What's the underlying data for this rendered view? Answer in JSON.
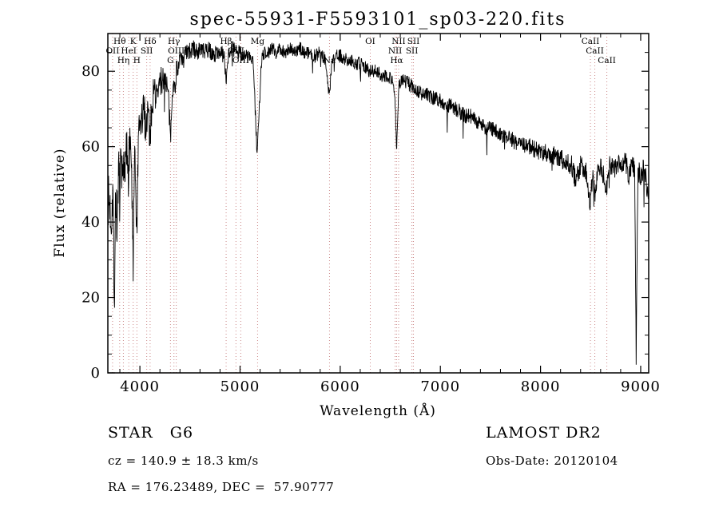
{
  "title": "spec-55931-F5593101_sp03-220.fits",
  "chart_data": {
    "type": "line",
    "title": "spec-55931-F5593101_sp03-220.fits",
    "xlabel": "Wavelength (Å)",
    "ylabel": "Flux (relative)",
    "xlim": [
      3680,
      9080
    ],
    "ylim": [
      0,
      90
    ],
    "xticks": [
      4000,
      5000,
      6000,
      7000,
      8000,
      9000
    ],
    "yticks": [
      0,
      20,
      40,
      60,
      80
    ],
    "x_minor_step": 200,
    "y_minor_step": 5,
    "grid": false,
    "legend": "none",
    "line_color": "#000000",
    "marker_color": "#cc8888",
    "sample_step": 3,
    "noise_seed": 7,
    "noise_spike_prob": 0.012,
    "noise_spike_scale": 3.5,
    "envelope": [
      [
        3684,
        46
      ],
      [
        3700,
        44
      ],
      [
        3715,
        40
      ],
      [
        3730,
        50
      ],
      [
        3745,
        18
      ],
      [
        3758,
        50
      ],
      [
        3772,
        36
      ],
      [
        3786,
        54
      ],
      [
        3798,
        48
      ],
      [
        3812,
        56
      ],
      [
        3826,
        50
      ],
      [
        3840,
        57
      ],
      [
        3855,
        54
      ],
      [
        3870,
        60
      ],
      [
        3885,
        55
      ],
      [
        3900,
        62
      ],
      [
        3915,
        57
      ],
      [
        3933,
        26
      ],
      [
        3946,
        57
      ],
      [
        3958,
        48
      ],
      [
        3970,
        36
      ],
      [
        3984,
        60
      ],
      [
        4000,
        65
      ],
      [
        4020,
        67
      ],
      [
        4040,
        70
      ],
      [
        4060,
        65
      ],
      [
        4080,
        71
      ],
      [
        4102,
        62
      ],
      [
        4120,
        72
      ],
      [
        4145,
        75
      ],
      [
        4170,
        73
      ],
      [
        4200,
        77
      ],
      [
        4230,
        78
      ],
      [
        4260,
        78
      ],
      [
        4285,
        73
      ],
      [
        4305,
        61
      ],
      [
        4325,
        77
      ],
      [
        4345,
        75
      ],
      [
        4365,
        80
      ],
      [
        4390,
        82
      ],
      [
        4420,
        83
      ],
      [
        4450,
        84
      ],
      [
        4490,
        85
      ],
      [
        4530,
        86
      ],
      [
        4570,
        85
      ],
      [
        4610,
        86
      ],
      [
        4650,
        85
      ],
      [
        4690,
        86
      ],
      [
        4730,
        84
      ],
      [
        4770,
        85
      ],
      [
        4810,
        85
      ],
      [
        4840,
        84
      ],
      [
        4861,
        78
      ],
      [
        4885,
        85
      ],
      [
        4925,
        86
      ],
      [
        4965,
        85
      ],
      [
        5005,
        85
      ],
      [
        5045,
        84
      ],
      [
        5090,
        84
      ],
      [
        5130,
        83
      ],
      [
        5170,
        58
      ],
      [
        5188,
        68
      ],
      [
        5215,
        83
      ],
      [
        5245,
        85
      ],
      [
        5280,
        85
      ],
      [
        5320,
        86
      ],
      [
        5360,
        85
      ],
      [
        5400,
        86
      ],
      [
        5450,
        85
      ],
      [
        5500,
        86
      ],
      [
        5550,
        85
      ],
      [
        5600,
        86
      ],
      [
        5650,
        85
      ],
      [
        5700,
        85
      ],
      [
        5750,
        84
      ],
      [
        5800,
        85
      ],
      [
        5850,
        83
      ],
      [
        5893,
        73
      ],
      [
        5915,
        83
      ],
      [
        5960,
        84
      ],
      [
        6010,
        84
      ],
      [
        6060,
        83
      ],
      [
        6110,
        83
      ],
      [
        6160,
        82
      ],
      [
        6210,
        82
      ],
      [
        6260,
        81
      ],
      [
        6310,
        80
      ],
      [
        6360,
        80
      ],
      [
        6410,
        79
      ],
      [
        6460,
        79
      ],
      [
        6510,
        78
      ],
      [
        6545,
        75
      ],
      [
        6563,
        59
      ],
      [
        6585,
        76
      ],
      [
        6625,
        78
      ],
      [
        6670,
        77
      ],
      [
        6715,
        76
      ],
      [
        6760,
        75
      ],
      [
        6810,
        74
      ],
      [
        6860,
        74
      ],
      [
        6910,
        73
      ],
      [
        6960,
        73
      ],
      [
        7010,
        72
      ],
      [
        7060,
        71
      ],
      [
        7110,
        71
      ],
      [
        7160,
        70
      ],
      [
        7210,
        69
      ],
      [
        7260,
        68
      ],
      [
        7310,
        68
      ],
      [
        7360,
        67
      ],
      [
        7410,
        66
      ],
      [
        7460,
        65
      ],
      [
        7510,
        65
      ],
      [
        7560,
        64
      ],
      [
        7610,
        63
      ],
      [
        7660,
        62
      ],
      [
        7710,
        62
      ],
      [
        7760,
        61
      ],
      [
        7810,
        61
      ],
      [
        7860,
        60
      ],
      [
        7910,
        60
      ],
      [
        7960,
        59
      ],
      [
        8010,
        59
      ],
      [
        8060,
        58
      ],
      [
        8110,
        58
      ],
      [
        8160,
        57
      ],
      [
        8210,
        57
      ],
      [
        8260,
        56
      ],
      [
        8310,
        55
      ],
      [
        8350,
        51
      ],
      [
        8400,
        55
      ],
      [
        8450,
        54
      ],
      [
        8498,
        45
      ],
      [
        8520,
        53
      ],
      [
        8542,
        47
      ],
      [
        8570,
        54
      ],
      [
        8600,
        55
      ],
      [
        8632,
        52
      ],
      [
        8662,
        48
      ],
      [
        8690,
        55
      ],
      [
        8730,
        54
      ],
      [
        8770,
        55
      ],
      [
        8810,
        55
      ],
      [
        8850,
        56
      ],
      [
        8885,
        52
      ],
      [
        8915,
        55
      ],
      [
        8940,
        54
      ],
      [
        8955,
        5
      ],
      [
        8972,
        54
      ],
      [
        9000,
        52
      ],
      [
        9040,
        55
      ],
      [
        9060,
        50
      ],
      [
        9075,
        46
      ]
    ],
    "noise_profile": [
      [
        3684,
        7
      ],
      [
        3900,
        6.5
      ],
      [
        4100,
        5
      ],
      [
        4300,
        3.5
      ],
      [
        4600,
        2.2
      ],
      [
        5000,
        2
      ],
      [
        5500,
        1.8
      ],
      [
        6200,
        1.8
      ],
      [
        7000,
        2
      ],
      [
        7800,
        2.2
      ],
      [
        8300,
        2.8
      ],
      [
        8700,
        2.6
      ],
      [
        9075,
        3
      ]
    ],
    "spectral_lines": [
      {
        "wavelength": 3727,
        "label": "OII",
        "row": 1
      },
      {
        "wavelength": 3798,
        "label": "Hθ",
        "row": 0
      },
      {
        "wavelength": 3835,
        "label": "Hη",
        "row": 2
      },
      {
        "wavelength": 3889,
        "label": "HeI",
        "row": 1
      },
      {
        "wavelength": 3933,
        "label": "K",
        "row": 0
      },
      {
        "wavelength": 3970,
        "label": "H",
        "row": 2
      },
      {
        "wavelength": 4068,
        "label": "SII",
        "row": 1
      },
      {
        "wavelength": 4102,
        "label": "Hδ",
        "row": 0
      },
      {
        "wavelength": 4305,
        "label": "G",
        "row": 2
      },
      {
        "wavelength": 4340,
        "label": "Hγ",
        "row": 0
      },
      {
        "wavelength": 4363,
        "label": "OIII",
        "row": 1
      },
      {
        "wavelength": 4861,
        "label": "Hβ",
        "row": 0
      },
      {
        "wavelength": 4959,
        "label": "OIII",
        "row": 1
      },
      {
        "wavelength": 5007,
        "label": "OIII",
        "row": 2
      },
      {
        "wavelength": 5175,
        "label": "Mg",
        "row": 0
      },
      {
        "wavelength": 5893,
        "label": "Na",
        "row": 2
      },
      {
        "wavelength": 6300,
        "label": "OI",
        "row": 0
      },
      {
        "wavelength": 6548,
        "label": "NII",
        "row": 1
      },
      {
        "wavelength": 6563,
        "label": "Hα",
        "row": 2
      },
      {
        "wavelength": 6583,
        "label": "NII",
        "row": 0
      },
      {
        "wavelength": 6716,
        "label": "SII",
        "row": 1
      },
      {
        "wavelength": 6731,
        "label": "SII",
        "row": 0
      },
      {
        "wavelength": 8498,
        "label": "CaII",
        "row": 0
      },
      {
        "wavelength": 8542,
        "label": "CaII",
        "row": 1
      },
      {
        "wavelength": 8662,
        "label": "CaII",
        "row": 2
      }
    ]
  },
  "footer": {
    "left": {
      "class_line": "STAR   G6",
      "cz_line": "cz = 140.9 ± 18.3 km/s",
      "coord_line": "RA = 176.23489, DEC =  57.90777"
    },
    "right": {
      "survey_line": "LAMOST DR2",
      "obsdate_line": "Obs-Date: 20120104"
    }
  }
}
